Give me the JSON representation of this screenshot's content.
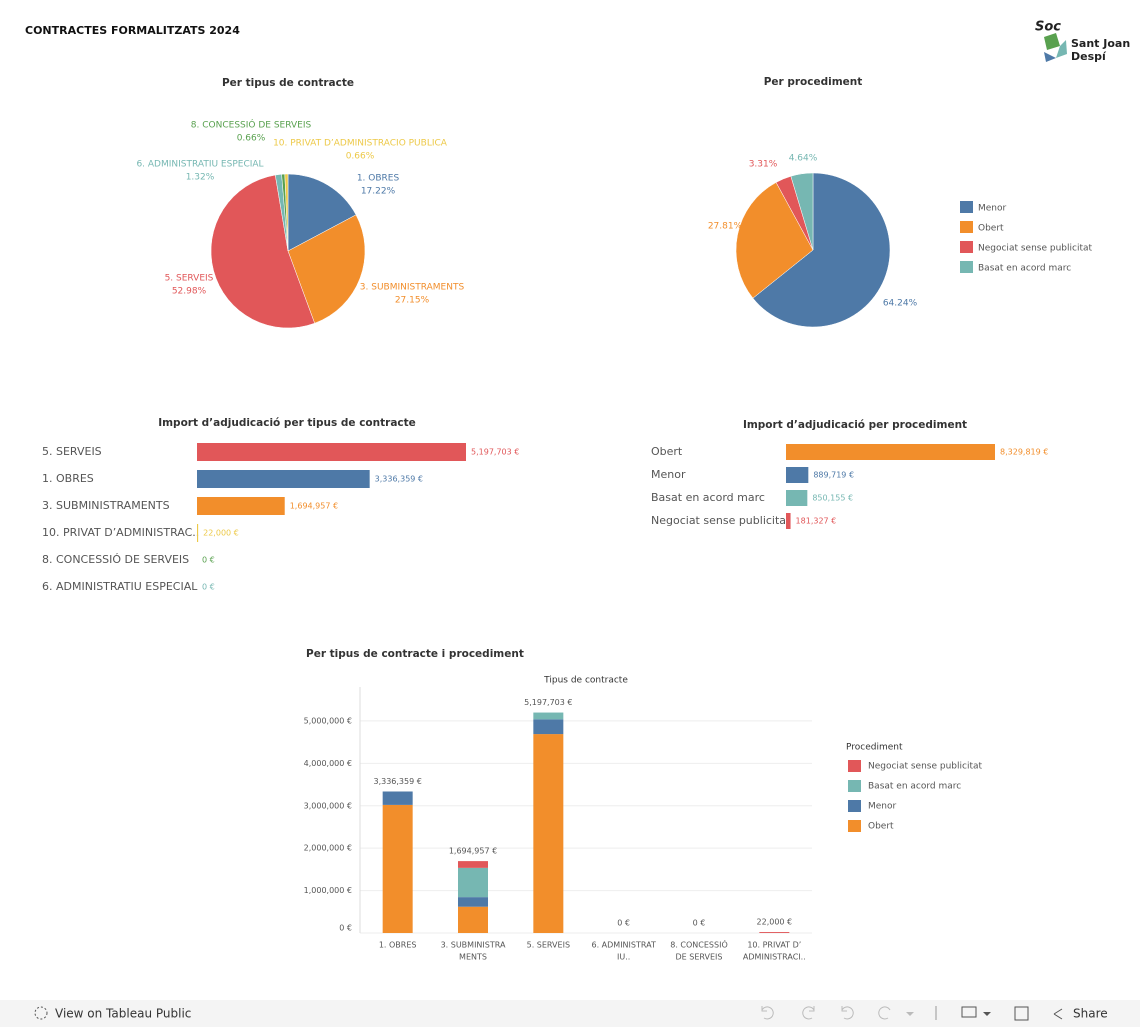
{
  "header": {
    "title": "CONTRACTES FORMALITZATS 2024",
    "logo_script": "Soc",
    "logo_lines": [
      "Sant Joan",
      "Despí"
    ]
  },
  "toolbar": {
    "view_link": "View on Tableau Public",
    "share": "Share"
  },
  "chart_data": [
    {
      "type": "pie",
      "title": "Per tipus de contracte",
      "categories": [
        "1. OBRES",
        "3. SUBMINISTRAMENTS",
        "5. SERVEIS",
        "6. ADMINISTRATIU ESPECIAL",
        "8. CONCESSIÓ DE SERVEIS",
        "10. PRIVAT D’ADMINISTRACIO PUBLICA"
      ],
      "values": [
        17.22,
        27.15,
        52.98,
        1.32,
        0.66,
        0.66
      ],
      "value_labels": [
        "17.22%",
        "27.15%",
        "52.98%",
        "1.32%",
        "0.66%",
        "0.66%"
      ],
      "colors": [
        "#4e79a7",
        "#f28e2b",
        "#e15759",
        "#76b7b2",
        "#59a14f",
        "#edc948"
      ]
    },
    {
      "type": "pie",
      "title": "Per procediment",
      "legend": "right",
      "categories": [
        "Menor",
        "Obert",
        "Negociat sense publicitat",
        "Basat en acord marc"
      ],
      "values": [
        64.24,
        27.81,
        3.31,
        4.64
      ],
      "value_labels": [
        "64.24%",
        "27.81%",
        "3.31%",
        "4.64%"
      ],
      "colors": [
        "#4e79a7",
        "#f28e2b",
        "#e15759",
        "#76b7b2"
      ]
    },
    {
      "type": "bar",
      "orientation": "horizontal",
      "title": "Import d’adjudicació per tipus de contracte",
      "categories": [
        "5. SERVEIS",
        "1. OBRES",
        "3. SUBMINISTRAMENTS",
        "10. PRIVAT D’ADMINISTRAC..",
        "8. CONCESSIÓ DE SERVEIS",
        "6. ADMINISTRATIU ESPECIAL"
      ],
      "values": [
        5197703,
        3336359,
        1694957,
        22000,
        0,
        0
      ],
      "value_labels": [
        "5,197,703 €",
        "3,336,359 €",
        "1,694,957 €",
        "22,000 €",
        "0 €",
        "0 €"
      ],
      "colors": [
        "#e15759",
        "#4e79a7",
        "#f28e2b",
        "#edc948",
        "#59a14f",
        "#76b7b2"
      ]
    },
    {
      "type": "bar",
      "orientation": "horizontal",
      "title": "Import d’adjudicació per procediment",
      "categories": [
        "Obert",
        "Menor",
        "Basat en acord marc",
        "Negociat sense publicitat"
      ],
      "values": [
        8329819,
        889719,
        850155,
        181327
      ],
      "value_labels": [
        "8,329,819 €",
        "889,719 €",
        "850,155 €",
        "181,327 €"
      ],
      "colors": [
        "#f28e2b",
        "#4e79a7",
        "#76b7b2",
        "#e15759"
      ]
    },
    {
      "type": "stacked-bar",
      "title": "Per tipus de contracte i procediment",
      "x_label": "Tipus de contracte",
      "legend_title": "Procediment",
      "categories": [
        [
          "1. OBRES"
        ],
        [
          "3. SUBMINISTRA",
          "MENTS"
        ],
        [
          "5. SERVEIS"
        ],
        [
          "6. ADMINISTRAT",
          "IU.."
        ],
        [
          "8. CONCESSIÓ",
          "DE SERVEIS"
        ],
        [
          "10. PRIVAT D’",
          "ADMINISTRACI.."
        ]
      ],
      "series": [
        {
          "name": "Negociat sense publicitat",
          "color": "#e15759",
          "values": [
            0,
            159327,
            0,
            0,
            0,
            22000
          ]
        },
        {
          "name": "Basat en acord marc",
          "color": "#76b7b2",
          "values": [
            0,
            690000,
            160155,
            0,
            0,
            0
          ]
        },
        {
          "name": "Menor",
          "color": "#4e79a7",
          "values": [
            316359,
            225630,
            347548,
            0,
            0,
            0
          ]
        },
        {
          "name": "Obert",
          "color": "#f28e2b",
          "values": [
            3020000,
            620000,
            4690000,
            0,
            0,
            0
          ]
        }
      ],
      "totals": [
        3336359,
        1694957,
        5197703,
        0,
        0,
        22000
      ],
      "total_labels": [
        "3,336,359 €",
        "1,694,957 €",
        "5,197,703 €",
        "0 €",
        "0 €",
        "22,000 €"
      ],
      "ylim": [
        0,
        5800000
      ],
      "yticks": [
        {
          "value": 0,
          "label": "0 €"
        },
        {
          "value": 1000000,
          "label": "1,000,000 €"
        },
        {
          "value": 2000000,
          "label": "2,000,000 €"
        },
        {
          "value": 3000000,
          "label": "3,000,000 €"
        },
        {
          "value": 4000000,
          "label": "4,000,000 €"
        },
        {
          "value": 5000000,
          "label": "5,000,000 €"
        }
      ],
      "grid": true
    }
  ]
}
